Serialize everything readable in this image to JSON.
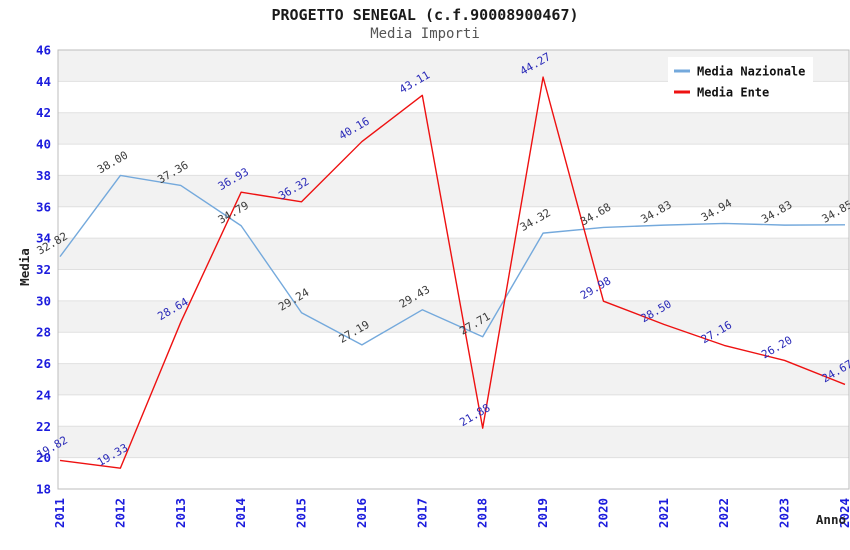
{
  "title": "PROGETTO SENEGAL (c.f.90008900467)",
  "subtitle": "Media Importi",
  "axes": {
    "x_title": "Anno",
    "y_title": "Media"
  },
  "legend": {
    "items": [
      {
        "label": "Media Nazionale",
        "color": "#74a9dc"
      },
      {
        "label": "Media Ente",
        "color": "#ee1111"
      }
    ]
  },
  "chart_data": {
    "type": "line",
    "x": [
      2011,
      2012,
      2013,
      2014,
      2015,
      2016,
      2017,
      2018,
      2019,
      2020,
      2021,
      2022,
      2023,
      2024
    ],
    "series": [
      {
        "name": "Media Nazionale",
        "color": "#74a9dc",
        "label_color": "#3c3c3c",
        "values": [
          32.82,
          38.0,
          37.36,
          34.79,
          29.24,
          27.19,
          29.43,
          27.71,
          34.32,
          34.68,
          34.83,
          34.94,
          34.83,
          34.85
        ]
      },
      {
        "name": "Media Ente",
        "color": "#ee1111",
        "label_color": "#2a2ab8",
        "values": [
          19.82,
          19.33,
          28.64,
          36.93,
          36.32,
          40.16,
          43.11,
          21.88,
          44.27,
          29.98,
          28.5,
          27.16,
          26.2,
          24.67
        ]
      }
    ],
    "xlabel": "Anno",
    "ylabel": "Media",
    "ylim": [
      18,
      46
    ],
    "ytick_step": 2,
    "tick_label_color": "#1c1cdd",
    "grid": "horizontal-bands",
    "band_color": "#f2f2f2",
    "gridline_color": "#e0e0e0",
    "border_color": "#bdbdbd",
    "legend_position": "top-right",
    "point_labels": "two-decimals",
    "label_rotation_deg": -30
  }
}
